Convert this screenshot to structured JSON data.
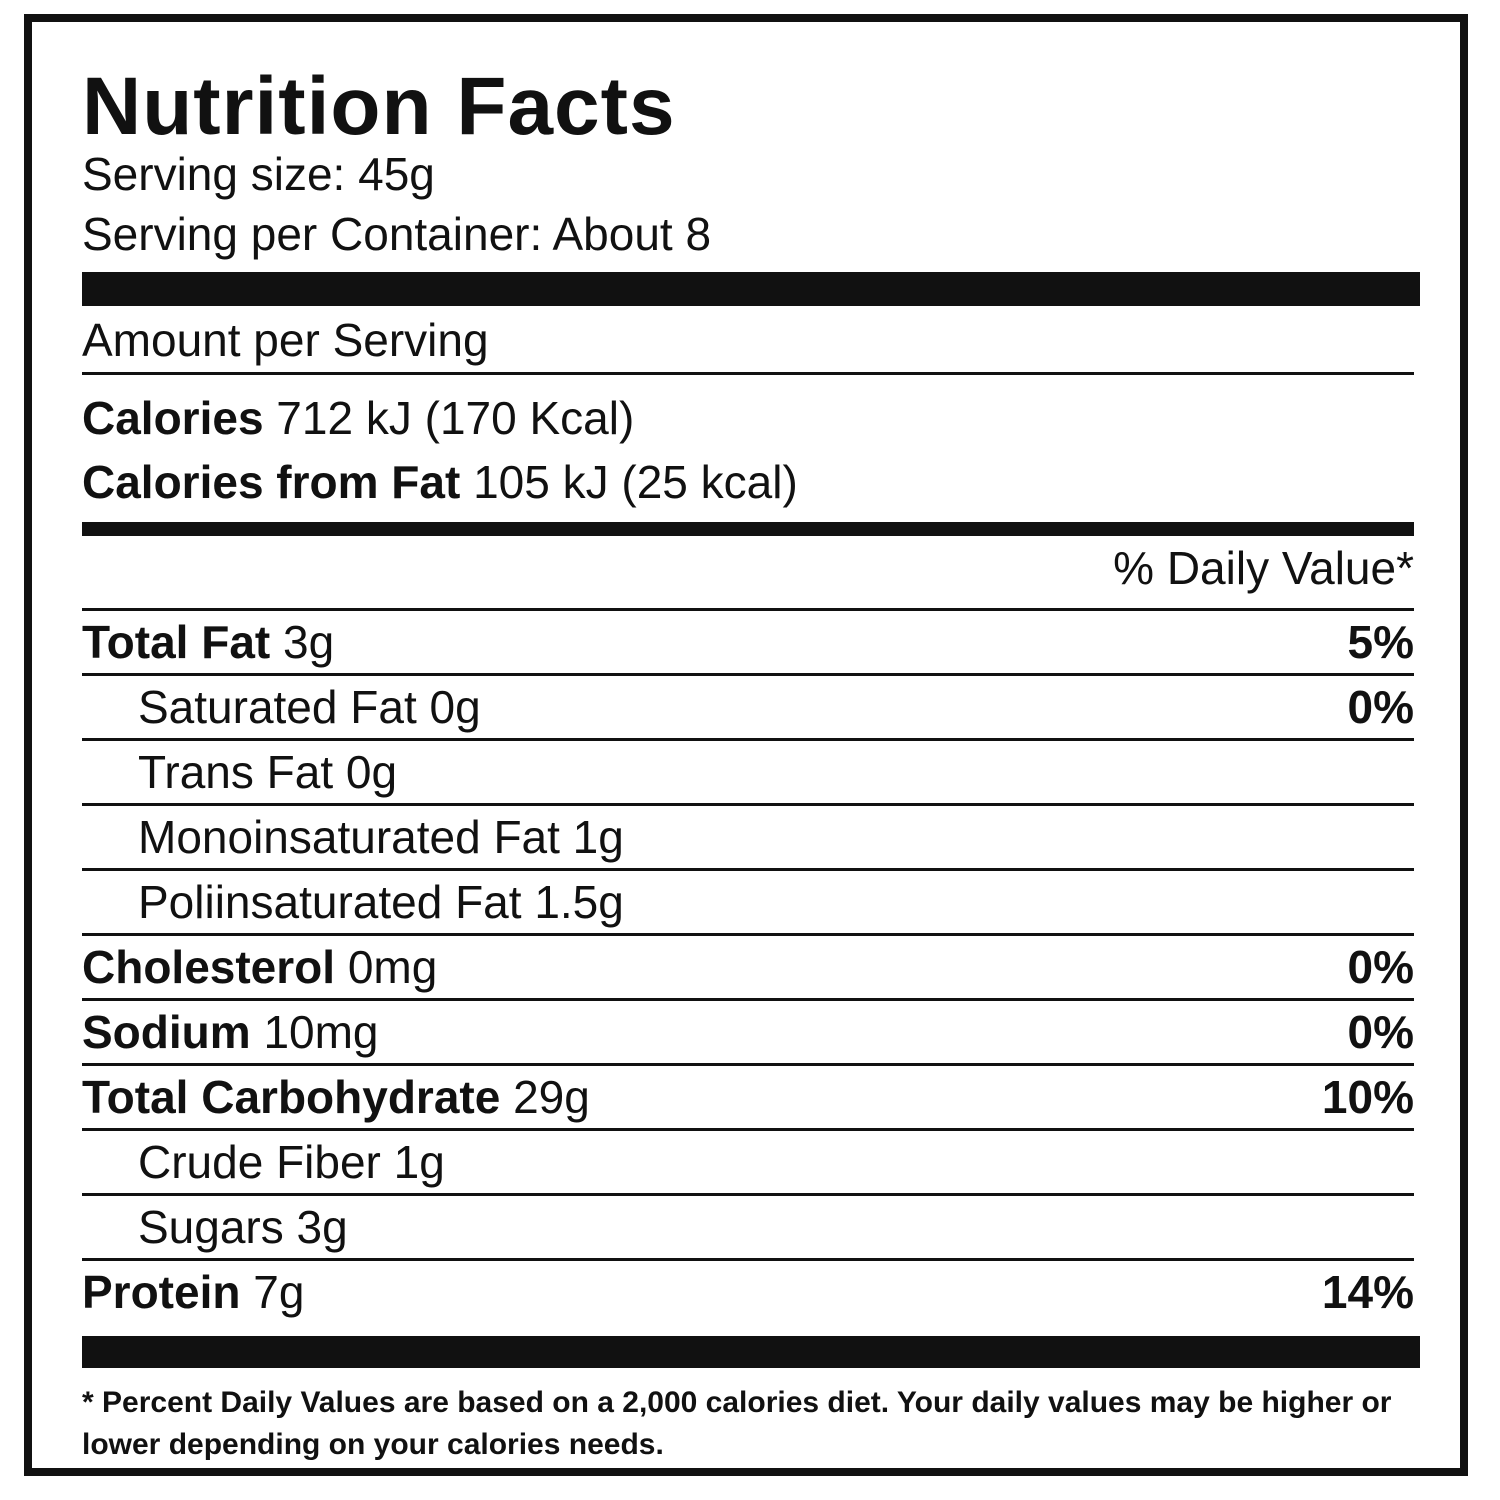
{
  "label": {
    "title": "Nutrition Facts",
    "serving_size": "Serving size: 45g",
    "servings_per_container": "Serving per Container: About 8",
    "amount_per_serving": "Amount per Serving",
    "calories": {
      "label": "Calories",
      "value": " 712 kJ (170 Kcal)"
    },
    "calories_from_fat": {
      "label": "Calories from Fat",
      "value": " 105 kJ (25 kcal)"
    },
    "daily_value_header": "% Daily Value*",
    "nutrients": [
      {
        "name": "Total Fat",
        "amount": " 3g",
        "dv": "5%"
      },
      {
        "name": "Saturated Fat 0g",
        "amount": "",
        "dv": "0%"
      },
      {
        "name": "Trans Fat 0g",
        "amount": "",
        "dv": ""
      },
      {
        "name": "Monoinsaturated Fat 1g",
        "amount": "",
        "dv": ""
      },
      {
        "name": "Poliinsaturated Fat 1.5g",
        "amount": "",
        "dv": ""
      },
      {
        "name": "Cholesterol",
        "amount": " 0mg",
        "dv": "0%"
      },
      {
        "name": "Sodium",
        "amount": " 10mg",
        "dv": "0%"
      },
      {
        "name": "Total Carbohydrate",
        "amount": " 29g",
        "dv": "10%"
      },
      {
        "name": "Crude Fiber 1g",
        "amount": "",
        "dv": ""
      },
      {
        "name": "Sugars 3g",
        "amount": "",
        "dv": ""
      },
      {
        "name": "Protein",
        "amount": " 7g",
        "dv": "14%"
      }
    ],
    "footnote": "* Percent Daily Values are based on a 2,000 calories diet. Your daily values may be higher or lower depending on your calories needs."
  }
}
